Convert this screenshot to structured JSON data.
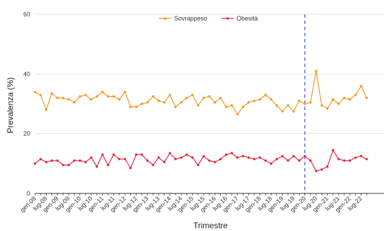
{
  "chart_data": {
    "type": "line",
    "xlabel": "Trimestre",
    "ylabel": "Prevalenza (%)",
    "ylim": [
      0,
      60
    ],
    "yticks": [
      0,
      20,
      40,
      60
    ],
    "grid": "horizontal",
    "legend_position": "top-center",
    "x_tick_labels": [
      "gen-08",
      "lug-08",
      "gen-09",
      "lug-09",
      "gen-10",
      "lug-10",
      "gen-11",
      "lug-11",
      "gen-12",
      "lug-12",
      "gen-13",
      "lug-13",
      "gen-14",
      "lug-14",
      "gen-15",
      "lug-15",
      "gen-16",
      "lug-16",
      "gen-17",
      "lug-17",
      "gen-18",
      "lug-18",
      "gen-19",
      "lug-19",
      "gen-20",
      "lug-20",
      "gen-21",
      "lug-21",
      "gen-22",
      "lug-22"
    ],
    "quarters_per_label": 2,
    "n_points": 60,
    "reference_line_at": "gen-20",
    "series": [
      {
        "name": "Sovrappeso",
        "color": "#f5961e",
        "values": [
          34.0,
          33.0,
          28.0,
          33.5,
          32.0,
          32.0,
          31.5,
          30.5,
          32.5,
          33.0,
          31.5,
          32.5,
          34.0,
          32.5,
          32.5,
          31.5,
          34.0,
          29.0,
          29.0,
          30.0,
          30.5,
          32.5,
          31.0,
          30.5,
          33.0,
          29.0,
          30.5,
          32.0,
          33.0,
          29.5,
          32.0,
          32.5,
          30.5,
          32.0,
          29.0,
          29.5,
          26.5,
          29.0,
          30.5,
          31.0,
          31.5,
          33.0,
          31.5,
          29.5,
          27.5,
          29.5,
          27.5,
          31.0,
          30.0,
          30.5,
          41.0,
          29.5,
          28.5,
          31.5,
          30.0,
          32.0,
          31.5,
          33.0,
          36.0,
          32.0
        ]
      },
      {
        "name": "Obesità",
        "color": "#e8253a",
        "values": [
          10.0,
          11.5,
          10.5,
          11.0,
          11.0,
          9.5,
          9.5,
          11.0,
          11.0,
          10.5,
          12.0,
          9.0,
          13.0,
          9.5,
          13.0,
          11.5,
          11.5,
          8.5,
          13.0,
          13.0,
          11.0,
          9.5,
          12.0,
          10.5,
          13.5,
          11.5,
          12.0,
          13.0,
          12.0,
          9.5,
          12.5,
          11.0,
          10.5,
          11.5,
          13.0,
          13.5,
          12.0,
          12.5,
          12.0,
          11.5,
          12.0,
          11.0,
          10.0,
          11.5,
          12.5,
          11.0,
          12.5,
          11.0,
          12.5,
          11.0,
          7.5,
          8.0,
          9.0,
          14.5,
          11.5,
          11.0,
          11.0,
          12.0,
          12.5,
          11.5
        ]
      }
    ]
  }
}
